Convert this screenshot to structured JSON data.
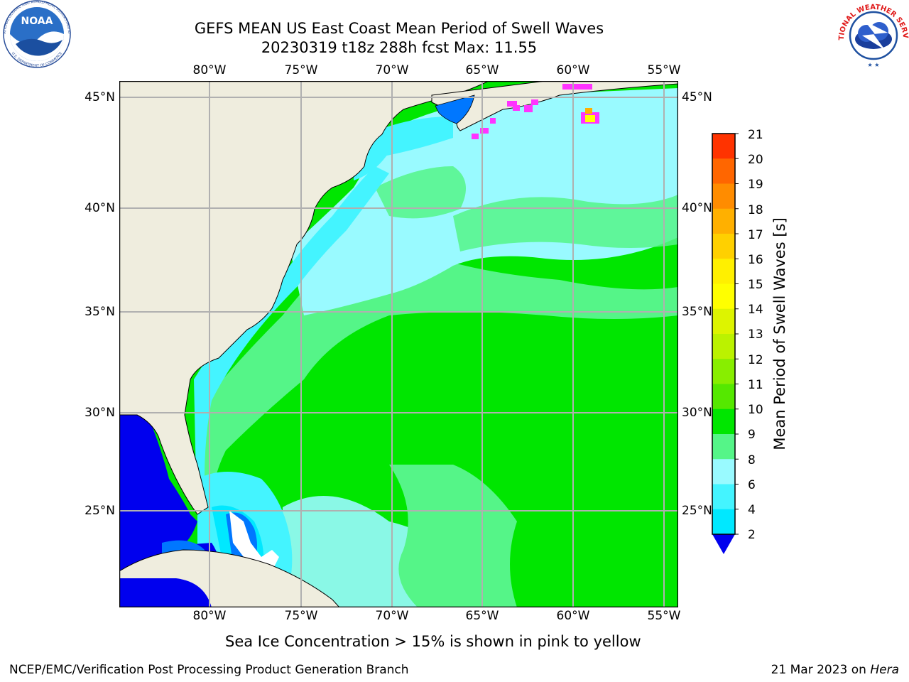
{
  "header": {
    "title_line1": "GEFS MEAN US East Coast Mean Period of Swell Waves",
    "title_line2": "20230319 t18z 288h fcst   Max: 11.55"
  },
  "logos": {
    "left": {
      "name": "NOAA",
      "text": "NOAA",
      "ring_text": "NATIONAL OCEANIC AND ATMOSPHERIC ADMINISTRATION · U.S. DEPARTMENT OF COMMERCE"
    },
    "right": {
      "name": "National Weather Service",
      "ring_text": "NATIONAL WEATHER SERVICE"
    }
  },
  "map": {
    "lon_labels": [
      "80°W",
      "75°W",
      "70°W",
      "65°W",
      "60°W",
      "55°W"
    ],
    "lat_labels": [
      "45°N",
      "40°N",
      "35°N",
      "30°N",
      "25°N"
    ],
    "colors": {
      "land": "#efedde",
      "gridline": "#b0b0b0",
      "ice_pink": "#ff33ff",
      "ice_yellow": "#ffff00"
    }
  },
  "colorbar": {
    "title": "Mean Period of Swell Waves [s]",
    "ticks": [
      "21",
      "20",
      "19",
      "18",
      "17",
      "16",
      "15",
      "14",
      "13",
      "12",
      "11",
      "10",
      "9",
      "8",
      "6",
      "4",
      "2"
    ],
    "colors_bottom_to_top": [
      "#0077ff",
      "#00e8ff",
      "#44f4ff",
      "#99faff",
      "#55f588",
      "#00e600",
      "#55e800",
      "#88ee00",
      "#bbf200",
      "#ddf400",
      "#ffff00",
      "#fff000",
      "#ffd000",
      "#ffb000",
      "#ff8c00",
      "#ff6600",
      "#ff3300",
      "#ff0000"
    ],
    "extend_below_color": "#0000ee"
  },
  "notes": {
    "sea_ice": "Sea Ice Concentration > 15% is shown in pink to yellow"
  },
  "footer": {
    "left": "NCEP/EMC/Verification Post Processing Product Generation Branch",
    "right_prefix": "21 Mar 2023 on ",
    "right_host": "Hera"
  }
}
